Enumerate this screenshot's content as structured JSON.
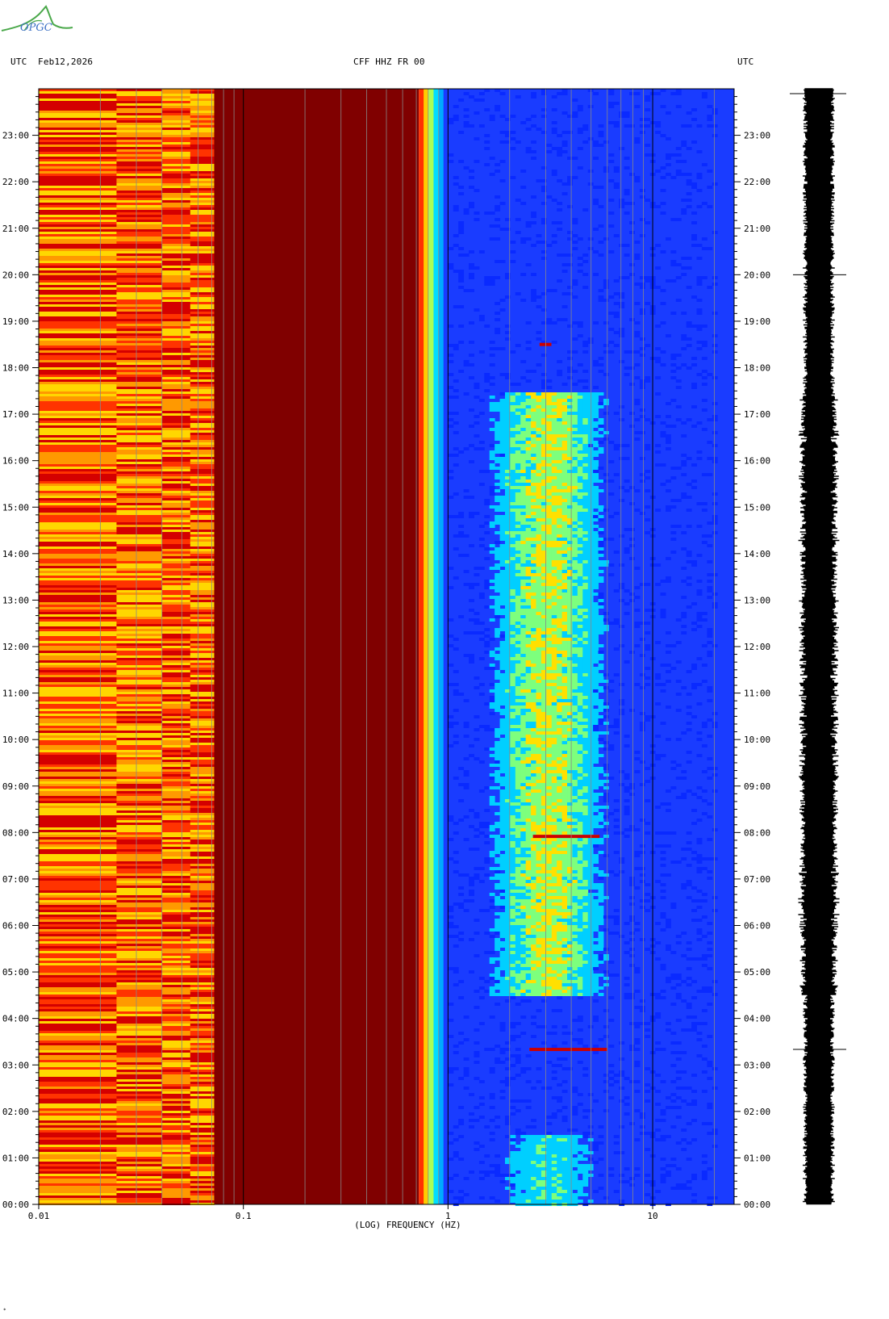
{
  "header": {
    "left_tz": "UTC",
    "date": "Feb12,2026",
    "station": "CFF HHZ FR 00",
    "right_tz": "UTC"
  },
  "logo": {
    "text": "OPGC",
    "color": "#3b9a3b"
  },
  "chart_data": {
    "type": "heatmap",
    "title": "CFF HHZ FR 00",
    "xlabel": "(LOG) FREQUENCY (HZ)",
    "x_scale": "log",
    "xlim": [
      0.01,
      25
    ],
    "x_ticks": [
      0.01,
      0.1,
      1,
      10
    ],
    "x_tick_labels": [
      "0.01",
      "0.1",
      "1",
      "10"
    ],
    "ylabel": "UTC",
    "y_tick_labels": [
      "00:00",
      "01:00",
      "02:00",
      "03:00",
      "04:00",
      "05:00",
      "06:00",
      "07:00",
      "08:00",
      "09:00",
      "10:00",
      "11:00",
      "12:00",
      "13:00",
      "14:00",
      "15:00",
      "16:00",
      "17:00",
      "18:00",
      "19:00",
      "20:00",
      "21:00",
      "22:00",
      "23:00"
    ],
    "colors": {
      "low_freq_band": [
        "#ff3300",
        "#ff9900",
        "#ffd700",
        "#d40000"
      ],
      "dark_band": "#800000",
      "background_noise": "#1a3cff",
      "elevated_noise": [
        "#00cfff",
        "#7dff7d",
        "#ffe000"
      ],
      "transients": "#cc0000"
    },
    "events": [
      {
        "time": "03:20",
        "freq_hz": [
          2.5,
          6
        ]
      },
      {
        "time": "07:55",
        "freq_hz": [
          2.6,
          5.5
        ]
      },
      {
        "time": "18:30",
        "freq_hz": [
          2.8,
          3.2
        ]
      }
    ],
    "seismogram": {
      "color": "#000000",
      "spikes": [
        "03:20",
        "20:00"
      ]
    }
  },
  "footer": {
    "mark": "*"
  }
}
